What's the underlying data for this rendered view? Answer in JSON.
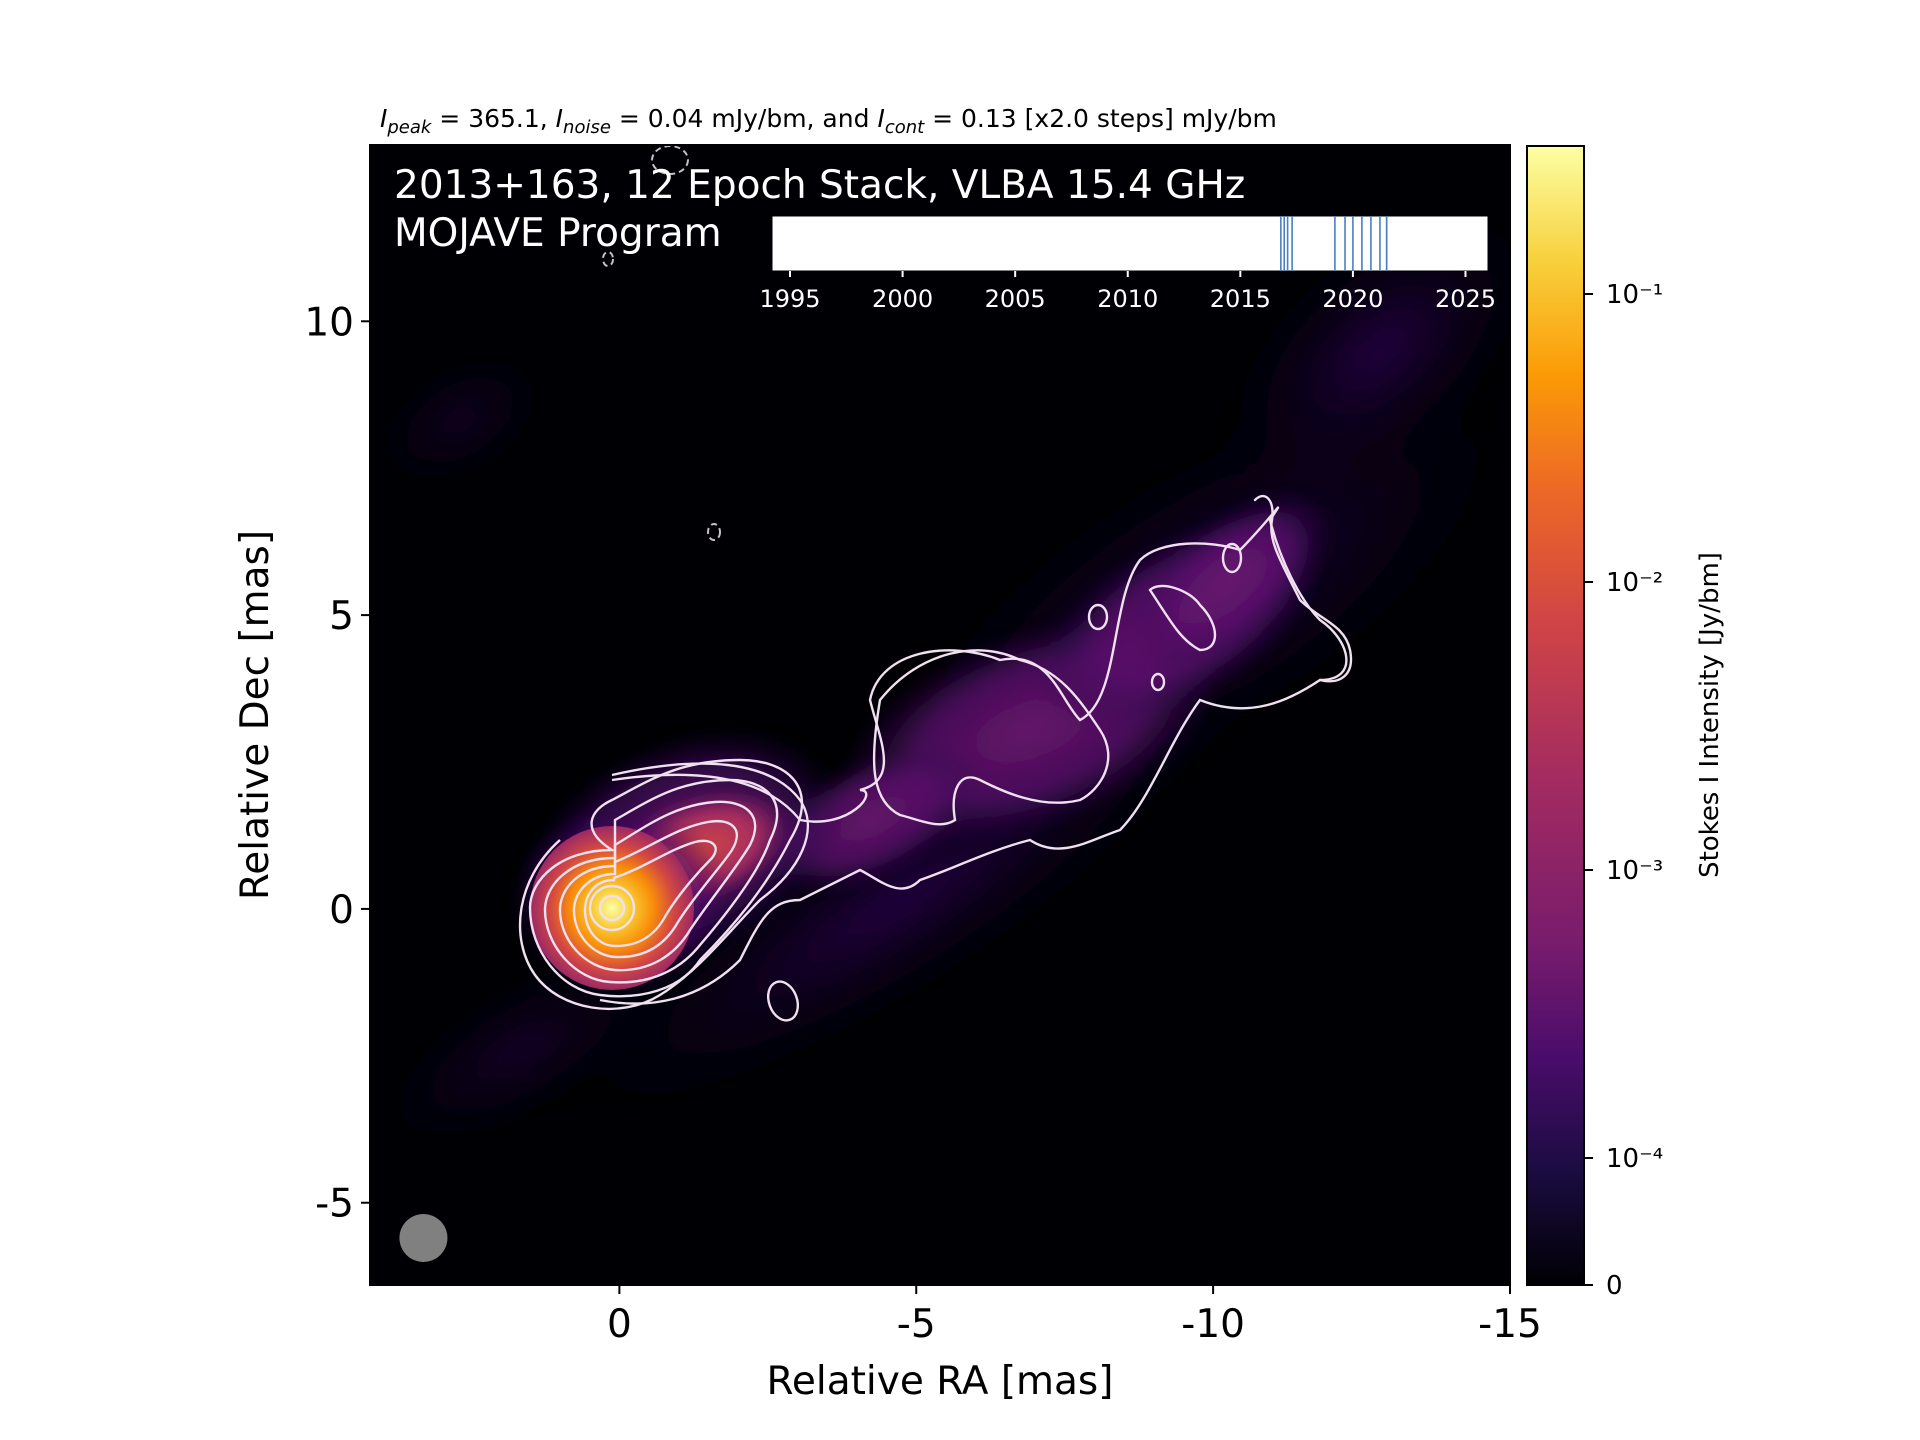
{
  "chart_data": {
    "type": "heatmap",
    "title": "365.1, 0.04 mJy/bm, and 0.13 [x2.0 steps] mJy/bm",
    "title_parts": {
      "peak_symbol": "I",
      "peak_sub": "peak",
      "peak_value": "365.1,",
      "noise_symbol": "I",
      "noise_sub": "noise",
      "noise_value": "0.04 mJy/bm, and",
      "cont_symbol": "I",
      "cont_sub": "cont",
      "cont_value": "0.13 [x2.0 steps] mJy/bm"
    },
    "annotation_line1": "2013+163, 12 Epoch Stack, VLBA 15.4 GHz",
    "annotation_line2": "MOJAVE Program",
    "xlabel": "Relative RA [mas]",
    "ylabel": "Relative Dec [mas]",
    "xlim": [
      4.2,
      -15
    ],
    "ylim": [
      -6.4,
      13
    ],
    "xticks": [
      0,
      -5,
      -10,
      -15
    ],
    "xtick_labels": [
      "0",
      "-5",
      "-10",
      "-15"
    ],
    "yticks": [
      -5,
      0,
      5,
      10
    ],
    "ytick_labels": [
      "-5",
      "0",
      "5",
      "10"
    ],
    "peak_intensity_mJy_per_beam": 365.1,
    "noise_mJy_per_beam": 0.04,
    "lowest_contour_mJy_per_beam": 0.13,
    "contour_step_factor": 2.0,
    "core_position_mas": [
      0,
      0
    ],
    "jet_position_angle_deg": -60,
    "beam": {
      "major_mas": 0.8,
      "minor_mas": 0.8,
      "x": 3.3,
      "y": -5.6,
      "color": "#808080"
    },
    "colormap": "inferno",
    "colorbar": {
      "label": "Stokes I Intensity [Jy/bm]",
      "scale": "log",
      "ticks": [
        "10⁻¹",
        "10⁻²",
        "10⁻³",
        "10⁻⁴",
        "0"
      ],
      "tick_values": [
        0.1,
        0.01,
        0.001,
        0.0001,
        0
      ]
    },
    "epoch_timeline": {
      "xlim": [
        1994.2,
        2026
      ],
      "tick_labels": [
        "1995",
        "2000",
        "2005",
        "2010",
        "2015",
        "2020",
        "2025"
      ],
      "tick_values": [
        1995,
        2000,
        2005,
        2010,
        2015,
        2020,
        2025
      ],
      "epochs": [
        2016.8,
        2016.95,
        2017.1,
        2017.3,
        2019.2,
        2019.65,
        2020.0,
        2020.4,
        2020.8,
        2021.2,
        2021.5,
        2021.5
      ],
      "line_color": "#4a7fc1"
    },
    "contour_color": "#f0e0f0"
  }
}
